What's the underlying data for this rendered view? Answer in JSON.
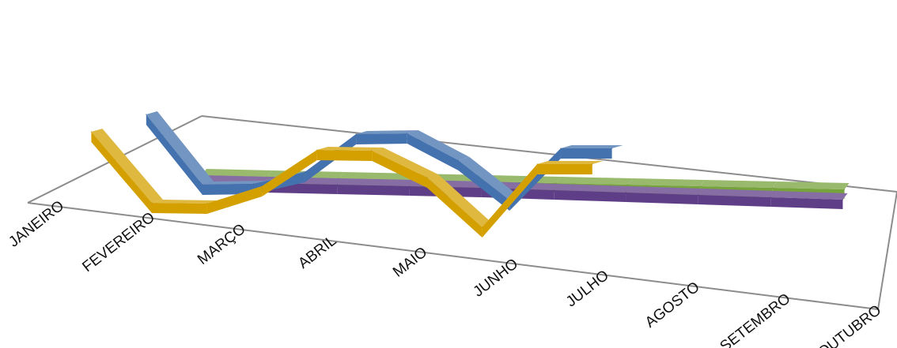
{
  "chart_data": {
    "type": "line",
    "style": "3d-ribbon",
    "categories": [
      "JANEIRO",
      "FEVEREIRO",
      "MARÇO",
      "ABRIL",
      "MAIO",
      "JUNHO",
      "JULHO",
      "AGOSTO",
      "SETEMBRO",
      "OUTUBRO"
    ],
    "series": [
      {
        "color": "#D4A000",
        "values": [
          96,
          6,
          5,
          27,
          73,
          72,
          38,
          -25,
          55,
          55
        ]
      },
      {
        "color": "#4472AE",
        "values": [
          95,
          6,
          7,
          22,
          70,
          71,
          37,
          -14,
          52,
          52
        ]
      },
      {
        "color": "#5E3E86",
        "values": [
          8,
          6,
          4,
          2,
          0,
          -3,
          -6,
          -9,
          -12,
          -15
        ]
      },
      {
        "color": "#77A33C",
        "values": [
          5,
          3,
          1,
          -1,
          -3,
          -5,
          -7,
          -9,
          -11,
          -13
        ]
      }
    ],
    "ylim": [
      -40,
      110
    ],
    "grid": false,
    "legend": "none"
  }
}
